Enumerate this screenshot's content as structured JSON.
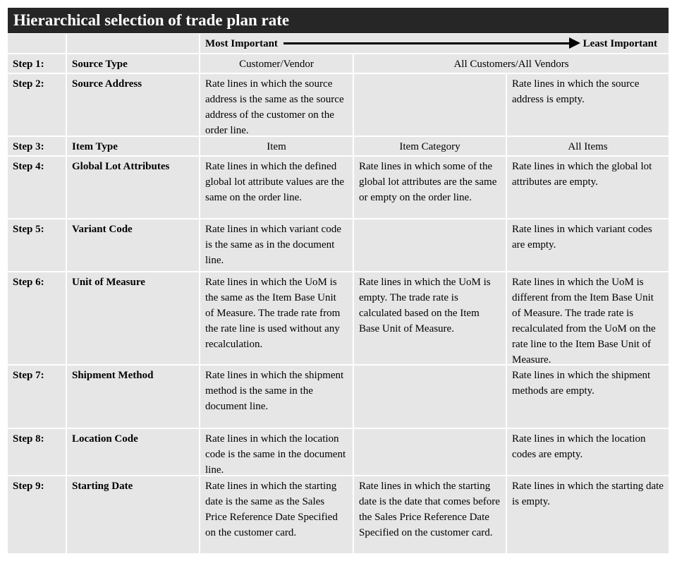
{
  "title": "Hierarchical selection of trade plan rate",
  "header": {
    "most": "Most Important",
    "least": "Least Important"
  },
  "rows": [
    {
      "step": "Step 1:",
      "name": "Source Type",
      "cells": [
        "Customer/Vendor",
        "All Customers/All Vendors"
      ]
    },
    {
      "step": "Step 2:",
      "name": "Source Address",
      "cells": [
        "Rate lines in which the source address is the same as the source address of the customer on the order line.",
        "",
        "Rate lines in which the source address is empty."
      ]
    },
    {
      "step": "Step 3:",
      "name": "Item Type",
      "cells": [
        "Item",
        "Item Category",
        "All Items"
      ]
    },
    {
      "step": "Step 4:",
      "name": "Global Lot Attributes",
      "cells": [
        "Rate lines in which the defined global lot attribute values are the same on the order line.",
        "Rate lines in which some of the global lot attributes are the same or empty on the order line.",
        "Rate lines in which the global lot attributes are empty."
      ]
    },
    {
      "step": "Step 5:",
      "name": "Variant Code",
      "cells": [
        "Rate lines in which variant code is the same as in the document line.",
        "",
        "Rate lines in which variant codes are empty."
      ]
    },
    {
      "step": "Step 6:",
      "name": "Unit of Measure",
      "cells": [
        "Rate lines in which the UoM is the same as the Item Base Unit of Measure. The trade rate from the rate line is used without any recalculation.",
        "Rate lines in which the UoM is empty. The trade rate is calculated based on the Item Base Unit of Measure.",
        "Rate lines in which the UoM is different from the Item Base Unit of Measure. The trade rate is recalculated from the UoM on the rate line to the Item Base Unit of Measure."
      ]
    },
    {
      "step": "Step 7:",
      "name": "Shipment Method",
      "cells": [
        "Rate lines in which the shipment method is the same in the document line.",
        "",
        "Rate lines in which the shipment methods are empty."
      ]
    },
    {
      "step": "Step 8:",
      "name": "Location Code",
      "cells": [
        "Rate lines in which the location code is the same in the document line.",
        "",
        "Rate lines in which the location codes are empty."
      ]
    },
    {
      "step": "Step 9:",
      "name": "Starting Date",
      "cells": [
        "Rate lines in which the starting date is the same as the Sales Price Reference Date Specified on the customer card.",
        "Rate lines in which the starting date is the date that comes before the Sales Price Reference Date Specified on the customer card.",
        "Rate lines in which the starting date is empty."
      ]
    }
  ]
}
